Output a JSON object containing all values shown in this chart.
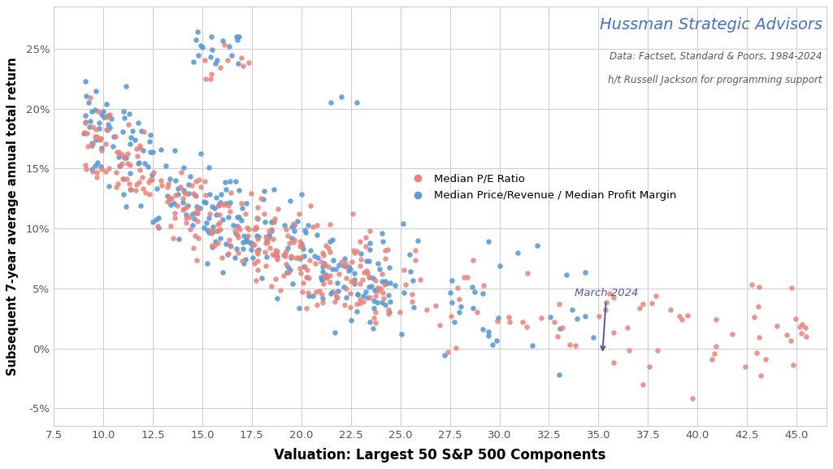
{
  "title": "Hussman Strategic Advisors",
  "subtitle1": "Data: Factset, Standard & Poors, 1984-2024",
  "subtitle2": "h/t Russell Jackson for programming support",
  "xlabel": "Valuation: Largest 50 S&P 500 Components",
  "ylabel": "Subsequent 7-year average annual total return",
  "title_color": "#4472C4",
  "subtitle_color": "#595959",
  "annotation_text": "March 2024",
  "xlim": [
    7.5,
    46.5
  ],
  "ylim": [
    -0.065,
    0.285
  ],
  "xticks": [
    7.5,
    10.0,
    12.5,
    15.0,
    17.5,
    20.0,
    22.5,
    25.0,
    27.5,
    30.0,
    32.5,
    35.0,
    37.5,
    40.0,
    42.5,
    45.0
  ],
  "yticks": [
    -0.05,
    0.0,
    0.05,
    0.1,
    0.15,
    0.2,
    0.25
  ],
  "color_pe": "#E8837A",
  "color_ps": "#5B9BD5",
  "marker_size": 22,
  "background_color": "#FFFFFF",
  "grid_color": "#CCCCCC",
  "legend_pe": "Median P/E Ratio",
  "legend_ps": "Median Price/Revenue / Median Profit Margin"
}
